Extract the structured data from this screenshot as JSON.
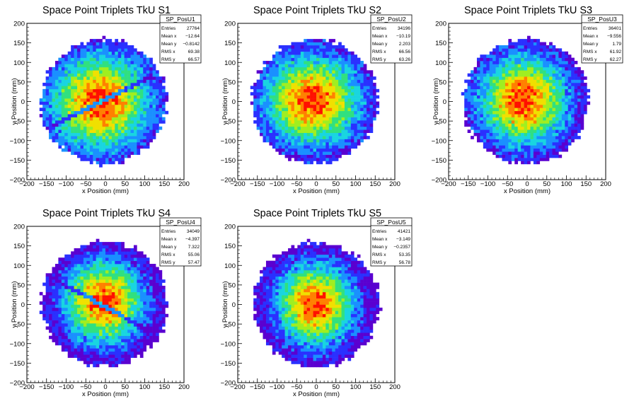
{
  "chart_data": [
    {
      "type": "heatmap",
      "name": "SP_PosU1",
      "title": "Space Point Triplets TkU S1",
      "xlabel": "x Position (mm)",
      "ylabel": "y Position (mm)",
      "xlim": [
        -200,
        200
      ],
      "ylim": [
        -200,
        200
      ],
      "x_ticks": [
        "−200",
        "−150",
        "−100",
        "−50",
        "0",
        "50",
        "100",
        "150",
        "200"
      ],
      "y_ticks": [
        "−200",
        "−150",
        "−100",
        "−50",
        "0",
        "50",
        "100",
        "150",
        "200"
      ],
      "distribution": {
        "center_x": -12.64,
        "center_y": -0.8142,
        "rms_x": 69.38,
        "rms_y": 66.57,
        "radius": 160,
        "dead_band": true,
        "dead_band_slope": 0.5
      },
      "stats": [
        {
          "label": "Entries",
          "value": "27764"
        },
        {
          "label": "Mean x",
          "value": "−12.64"
        },
        {
          "label": "Mean y",
          "value": "−0.8142"
        },
        {
          "label": "RMS x",
          "value": "69.38"
        },
        {
          "label": "RMS y",
          "value": "66.57"
        }
      ]
    },
    {
      "type": "heatmap",
      "name": "SP_PosU2",
      "title": "Space Point Triplets TkU S2",
      "xlabel": "x Position (mm)",
      "ylabel": "y Position (mm)",
      "xlim": [
        -200,
        200
      ],
      "ylim": [
        -200,
        200
      ],
      "x_ticks": [
        "−200",
        "−150",
        "−100",
        "−50",
        "0",
        "50",
        "100",
        "150",
        "200"
      ],
      "y_ticks": [
        "−200",
        "−150",
        "−100",
        "−50",
        "0",
        "50",
        "100",
        "150",
        "200"
      ],
      "distribution": {
        "center_x": -10.19,
        "center_y": 2.203,
        "rms_x": 66.56,
        "rms_y": 63.26,
        "radius": 160,
        "dead_band": false
      },
      "stats": [
        {
          "label": "Entries",
          "value": "34196"
        },
        {
          "label": "Mean x",
          "value": "−10.19"
        },
        {
          "label": "Mean y",
          "value": "2.203"
        },
        {
          "label": "RMS x",
          "value": "66.56"
        },
        {
          "label": "RMS y",
          "value": "63.26"
        }
      ]
    },
    {
      "type": "heatmap",
      "name": "SP_PosU3",
      "title": "Space Point Triplets TkU S3",
      "xlabel": "x Position (mm)",
      "ylabel": "y Position (mm)",
      "xlim": [
        -200,
        200
      ],
      "ylim": [
        -200,
        200
      ],
      "x_ticks": [
        "−200",
        "−150",
        "−100",
        "−50",
        "0",
        "50",
        "100",
        "150",
        "200"
      ],
      "y_ticks": [
        "−200",
        "−150",
        "−100",
        "−50",
        "0",
        "50",
        "100",
        "150",
        "200"
      ],
      "distribution": {
        "center_x": -9.556,
        "center_y": 1.79,
        "rms_x": 61.92,
        "rms_y": 62.27,
        "radius": 160,
        "dead_band": false
      },
      "stats": [
        {
          "label": "Entries",
          "value": "36401"
        },
        {
          "label": "Mean x",
          "value": "−9.556"
        },
        {
          "label": "Mean y",
          "value": "1.79"
        },
        {
          "label": "RMS x",
          "value": "61.92"
        },
        {
          "label": "RMS y",
          "value": "62.27"
        }
      ]
    },
    {
      "type": "heatmap",
      "name": "SP_PosU4",
      "title": "Space Point Triplets TkU S4",
      "xlabel": "x Position (mm)",
      "ylabel": "y Position (mm)",
      "xlim": [
        -200,
        200
      ],
      "ylim": [
        -200,
        200
      ],
      "x_ticks": [
        "−200",
        "−150",
        "−100",
        "−50",
        "0",
        "50",
        "100",
        "150",
        "200"
      ],
      "y_ticks": [
        "−200",
        "−150",
        "−100",
        "−50",
        "0",
        "50",
        "100",
        "150",
        "200"
      ],
      "distribution": {
        "center_x": -4.397,
        "center_y": 7.322,
        "rms_x": 55.06,
        "rms_y": 57.47,
        "radius": 160,
        "dead_band": true,
        "dead_band_slope": -0.55
      },
      "stats": [
        {
          "label": "Entries",
          "value": "34049"
        },
        {
          "label": "Mean x",
          "value": "−4.397"
        },
        {
          "label": "Mean y",
          "value": "7.322"
        },
        {
          "label": "RMS x",
          "value": "55.06"
        },
        {
          "label": "RMS y",
          "value": "57.47"
        }
      ]
    },
    {
      "type": "heatmap",
      "name": "SP_PosU5",
      "title": "Space Point Triplets TkU S5",
      "xlabel": "x Position (mm)",
      "ylabel": "y Position (mm)",
      "xlim": [
        -200,
        200
      ],
      "ylim": [
        -200,
        200
      ],
      "x_ticks": [
        "−200",
        "−150",
        "−100",
        "−50",
        "0",
        "50",
        "100",
        "150",
        "200"
      ],
      "y_ticks": [
        "−200",
        "−150",
        "−100",
        "−50",
        "0",
        "50",
        "100",
        "150",
        "200"
      ],
      "distribution": {
        "center_x": -3.149,
        "center_y": -0.2357,
        "rms_x": 53.35,
        "rms_y": 56.78,
        "radius": 160,
        "dead_band": false
      },
      "stats": [
        {
          "label": "Entries",
          "value": "41421"
        },
        {
          "label": "Mean x",
          "value": "−3.149"
        },
        {
          "label": "Mean y",
          "value": "−0.2357"
        },
        {
          "label": "RMS x",
          "value": "53.35"
        },
        {
          "label": "RMS y",
          "value": "56.78"
        }
      ]
    }
  ],
  "colors": {
    "palette": [
      "#5a00d0",
      "#2a30ff",
      "#1a90ff",
      "#19d5e0",
      "#30e080",
      "#a0ee20",
      "#f0e000",
      "#ff8000",
      "#ff1000"
    ],
    "frame": "#000000",
    "background": "#ffffff"
  }
}
